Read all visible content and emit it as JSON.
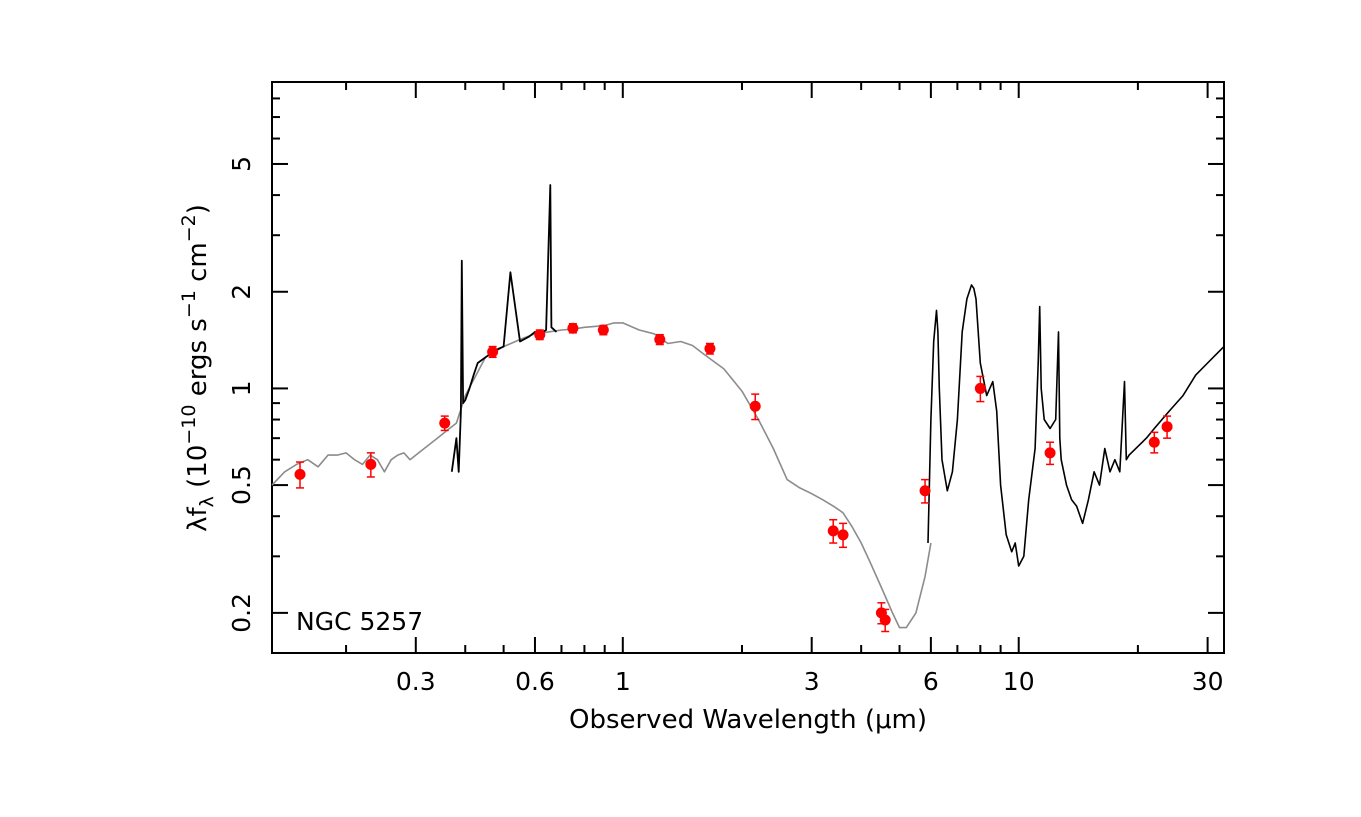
{
  "chart_data": {
    "type": "scatter",
    "panel_label": "NGC 5257",
    "xlabel": "Observed Wavelength (μm)",
    "ylabel": {
      "prefix": "λf",
      "sub": "λ",
      "mid1": " (10",
      "sup1": "−10",
      "mid2": " ergs s",
      "sup2": "−1",
      "mid3": " cm",
      "sup3": "−2",
      "suffix": ")"
    },
    "x_scale": "log",
    "y_scale": "log",
    "xlim": [
      0.13,
      33
    ],
    "ylim": [
      0.15,
      9
    ],
    "x_ticks": [
      {
        "value": 0.3,
        "label": "0.3"
      },
      {
        "value": 0.6,
        "label": "0.6"
      },
      {
        "value": 1,
        "label": "1"
      },
      {
        "value": 3,
        "label": "3"
      },
      {
        "value": 6,
        "label": "6"
      },
      {
        "value": 10,
        "label": "10"
      },
      {
        "value": 30,
        "label": "30"
      }
    ],
    "y_ticks": [
      {
        "value": 0.2,
        "label": "0.2"
      },
      {
        "value": 0.5,
        "label": "0.5"
      },
      {
        "value": 1,
        "label": "1"
      },
      {
        "value": 2,
        "label": "2"
      },
      {
        "value": 5,
        "label": "5"
      }
    ],
    "grid": false,
    "colors": {
      "model": "#8c8c8c",
      "spectrum": "#000000",
      "photometry": "#ff0000",
      "axes": "#000000"
    },
    "series": [
      {
        "kind": "model-sed-line",
        "x": [
          0.13,
          0.14,
          0.15,
          0.16,
          0.17,
          0.18,
          0.19,
          0.2,
          0.21,
          0.22,
          0.23,
          0.24,
          0.25,
          0.26,
          0.27,
          0.28,
          0.29,
          0.3,
          0.32,
          0.34,
          0.36,
          0.38,
          0.4,
          0.45,
          0.5,
          0.55,
          0.6,
          0.65,
          0.7,
          0.75,
          0.8,
          0.85,
          0.9,
          0.95,
          1.0,
          1.1,
          1.2,
          1.3,
          1.4,
          1.5,
          1.6,
          1.8,
          2.0,
          2.2,
          2.4,
          2.6,
          2.8,
          3.0,
          3.2,
          3.4,
          3.5,
          3.6,
          3.8,
          4.0,
          4.2,
          4.5,
          4.8,
          5.0,
          5.2,
          5.5,
          5.8,
          6.0
        ],
        "y": [
          0.5,
          0.55,
          0.58,
          0.6,
          0.57,
          0.62,
          0.62,
          0.63,
          0.6,
          0.58,
          0.62,
          0.6,
          0.55,
          0.6,
          0.62,
          0.63,
          0.6,
          0.62,
          0.66,
          0.7,
          0.74,
          0.78,
          0.95,
          1.25,
          1.35,
          1.42,
          1.48,
          1.5,
          1.52,
          1.53,
          1.55,
          1.56,
          1.57,
          1.6,
          1.6,
          1.52,
          1.48,
          1.38,
          1.4,
          1.36,
          1.28,
          1.15,
          0.98,
          0.8,
          0.65,
          0.52,
          0.49,
          0.47,
          0.45,
          0.43,
          0.42,
          0.41,
          0.37,
          0.33,
          0.29,
          0.24,
          0.2,
          0.18,
          0.18,
          0.2,
          0.26,
          0.33
        ]
      },
      {
        "kind": "optical-spectrum",
        "x": [
          0.37,
          0.38,
          0.385,
          0.39,
          0.392,
          0.395,
          0.4,
          0.41,
          0.42,
          0.43,
          0.45,
          0.47,
          0.486,
          0.5,
          0.52,
          0.55,
          0.58,
          0.6,
          0.62,
          0.64,
          0.656,
          0.66,
          0.68
        ],
        "y": [
          0.55,
          0.7,
          0.55,
          0.85,
          2.5,
          0.9,
          0.92,
          1.0,
          1.1,
          1.2,
          1.25,
          1.3,
          1.33,
          1.35,
          2.3,
          1.4,
          1.45,
          1.5,
          1.48,
          1.52,
          4.3,
          1.55,
          1.5
        ]
      },
      {
        "kind": "ir-spectrum",
        "x": [
          5.9,
          6.0,
          6.1,
          6.2,
          6.25,
          6.3,
          6.4,
          6.6,
          6.8,
          7.0,
          7.2,
          7.4,
          7.6,
          7.7,
          7.8,
          8.0,
          8.3,
          8.6,
          8.8,
          9.0,
          9.3,
          9.6,
          9.8,
          10.0,
          10.3,
          10.6,
          11.0,
          11.2,
          11.3,
          11.4,
          11.6,
          12.0,
          12.4,
          12.6,
          12.7,
          12.8,
          13.2,
          13.6,
          14.0,
          14.5,
          15.0,
          15.5,
          16.0,
          16.5,
          17.0,
          17.5,
          18.0,
          18.5,
          18.7,
          19.0,
          20.0,
          21.0,
          22.0,
          24.0,
          26.0,
          28.0,
          30.0,
          32.0,
          33.0
        ],
        "y": [
          0.33,
          0.8,
          1.4,
          1.75,
          1.5,
          1.0,
          0.6,
          0.48,
          0.55,
          0.8,
          1.5,
          1.9,
          2.1,
          2.05,
          1.9,
          1.2,
          0.95,
          1.05,
          0.85,
          0.5,
          0.35,
          0.31,
          0.33,
          0.28,
          0.3,
          0.45,
          0.65,
          1.2,
          1.8,
          1.0,
          0.8,
          0.75,
          0.8,
          1.5,
          0.7,
          0.6,
          0.5,
          0.45,
          0.43,
          0.38,
          0.45,
          0.55,
          0.5,
          0.65,
          0.55,
          0.6,
          0.55,
          1.05,
          0.6,
          0.62,
          0.66,
          0.7,
          0.75,
          0.85,
          0.95,
          1.1,
          1.2,
          1.3,
          1.35
        ]
      },
      {
        "kind": "photometry",
        "x": [
          0.153,
          0.231,
          0.355,
          0.469,
          0.617,
          0.748,
          0.893,
          1.24,
          1.66,
          2.16,
          3.4,
          3.6,
          4.5,
          4.6,
          5.8,
          8.0,
          12.0,
          22.0,
          23.7
        ],
        "y": [
          0.54,
          0.58,
          0.78,
          1.3,
          1.47,
          1.54,
          1.52,
          1.42,
          1.33,
          0.88,
          0.36,
          0.35,
          0.2,
          0.19,
          0.48,
          1.0,
          0.63,
          0.68,
          0.76
        ],
        "yerr": [
          0.05,
          0.05,
          0.04,
          0.05,
          0.05,
          0.05,
          0.05,
          0.05,
          0.05,
          0.08,
          0.03,
          0.03,
          0.015,
          0.015,
          0.04,
          0.09,
          0.05,
          0.05,
          0.06
        ]
      }
    ]
  }
}
